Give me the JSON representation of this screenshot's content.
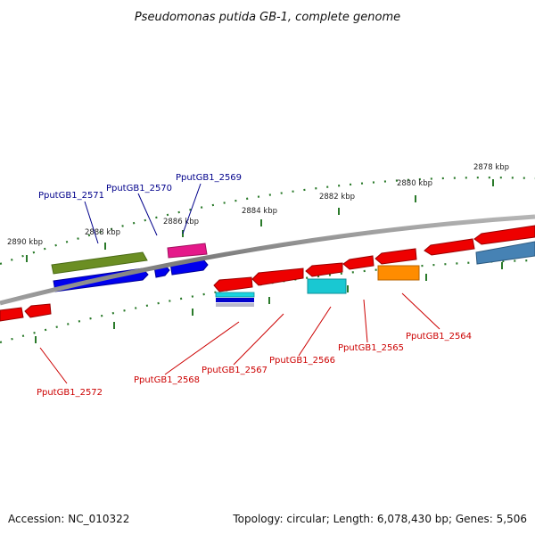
{
  "title": "Pseudomonas putida GB-1, complete genome",
  "footer": {
    "accession": "Accession: NC_010322",
    "summary": "Topology: circular; Length: 6,078,430 bp; Genes: 5,506"
  },
  "scale_labels": [
    "2890 kbp",
    "2888 kbp",
    "2886 kbp",
    "2884 kbp",
    "2882 kbp",
    "2880 kbp",
    "2878 kbp"
  ],
  "strand_colors": {
    "forward": "#00008b",
    "reverse": "#cc0000",
    "tick": "#2a7a2a",
    "backbone": "#808080"
  },
  "genes": [
    {
      "id": "PputGB1_2572",
      "strand": "reverse"
    },
    {
      "id": "PputGB1_2571",
      "strand": "forward"
    },
    {
      "id": "PputGB1_2570",
      "strand": "forward"
    },
    {
      "id": "PputGB1_2569",
      "strand": "forward"
    },
    {
      "id": "PputGB1_2568",
      "strand": "reverse"
    },
    {
      "id": "PputGB1_2567",
      "strand": "reverse"
    },
    {
      "id": "PputGB1_2566",
      "strand": "reverse"
    },
    {
      "id": "PputGB1_2565",
      "strand": "reverse"
    },
    {
      "id": "PputGB1_2564",
      "strand": "reverse"
    }
  ]
}
